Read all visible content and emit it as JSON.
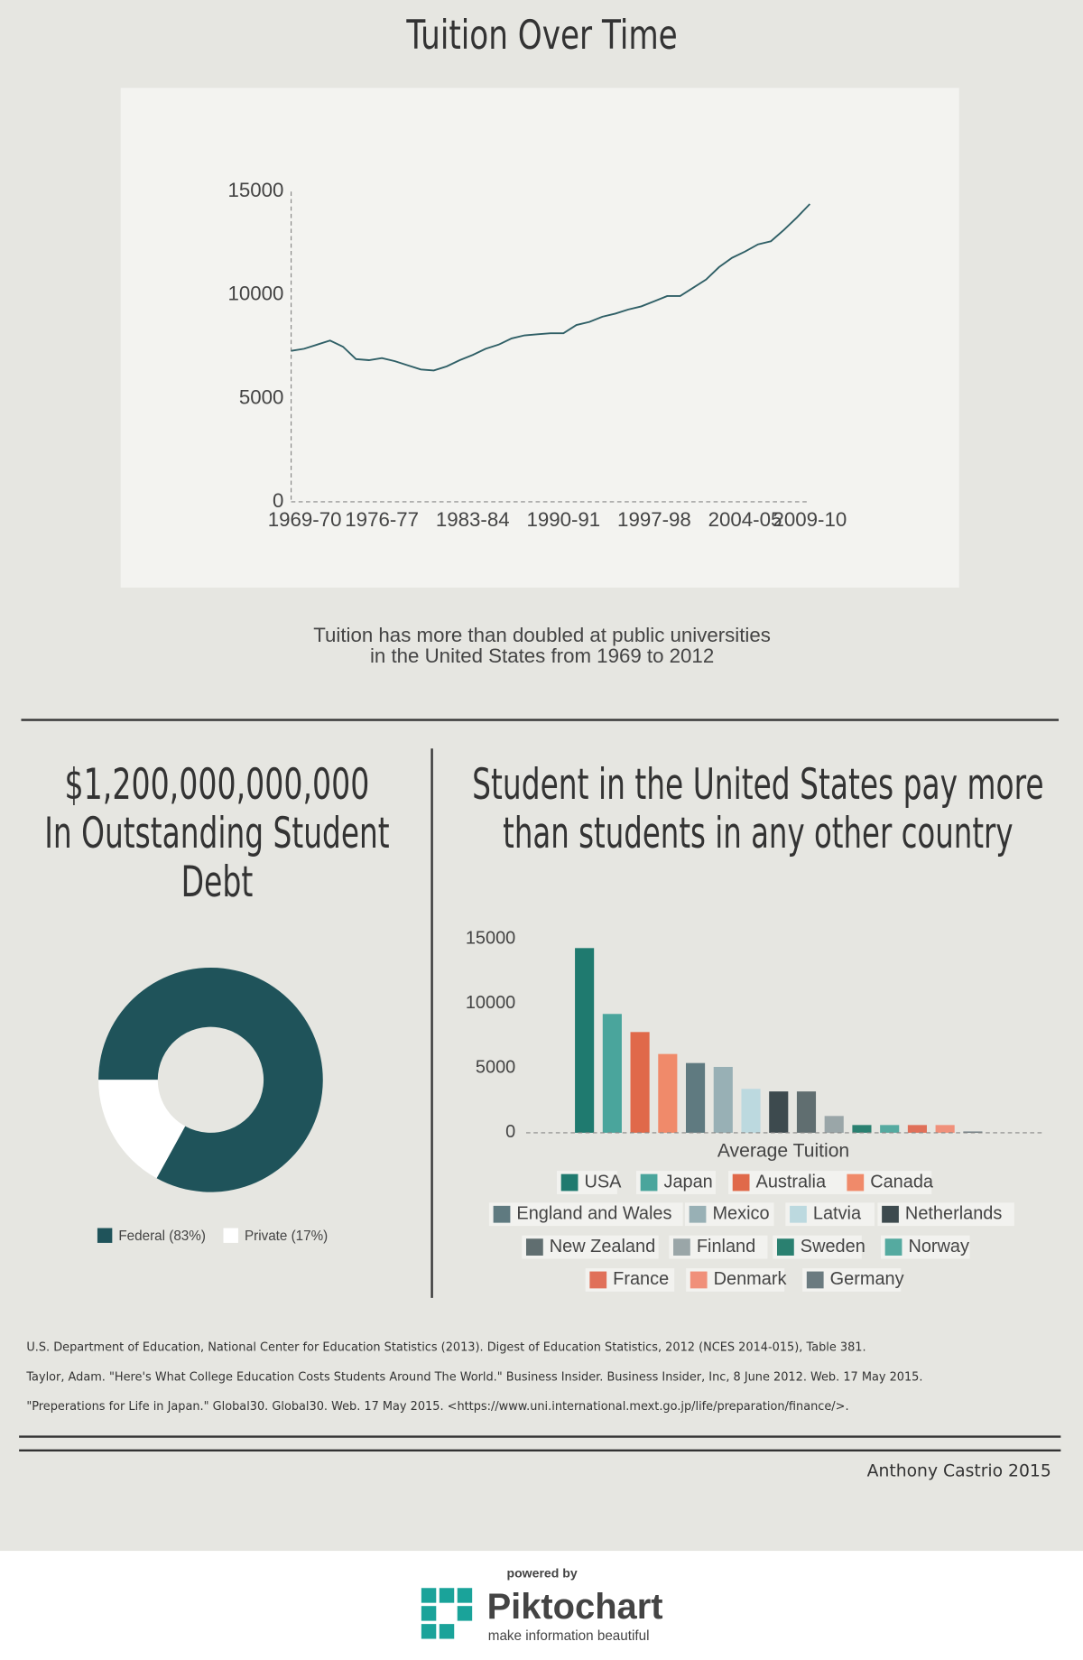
{
  "title": "Tuition Over Time",
  "caption": [
    "Tuition has more than doubled at public universities",
    "in the United States from 1969 to 2012"
  ],
  "debt_heading": [
    "$1,200,000,000,000",
    "In Outstanding Student",
    "Debt"
  ],
  "country_heading": [
    "Student in the United States pay more",
    "than students in any other country"
  ],
  "references": [
    "U.S. Department of Education, National Center for Education Statistics (2013). Digest of Education Statistics, 2012 (NCES 2014-015), Table 381.",
    "Taylor, Adam. \"Here's What College Education Costs Students Around The World.\" Business Insider. Business Insider, Inc, 8 June 2012. Web. 17 May 2015.",
    "\"Preperations for Life in Japan.\" Global30. Global30. Web. 17 May 2015. <https://www.uni.international.mext.go.jp/life/preparation/finance/>."
  ],
  "author": "Anthony Castrio 2015",
  "footer": {
    "powered_by": "powered by",
    "brand": "Piktochart",
    "tagline": "make information beautiful"
  },
  "chart_data": [
    {
      "type": "line",
      "color": "#2f5f66",
      "categories": [
        "1969-70",
        null,
        null,
        null,
        null,
        null,
        null,
        "1976-77",
        null,
        null,
        null,
        null,
        null,
        null,
        "1983-84",
        null,
        null,
        null,
        null,
        null,
        null,
        "1990-91",
        null,
        null,
        null,
        null,
        null,
        null,
        "1997-98",
        null,
        null,
        null,
        null,
        null,
        null,
        "2004-05",
        null,
        null,
        null,
        null,
        "2009-10"
      ],
      "values": [
        7300,
        7400,
        7600,
        7800,
        7500,
        6900,
        6850,
        6950,
        6800,
        6600,
        6400,
        6350,
        6550,
        6850,
        7100,
        7400,
        7600,
        7900,
        8050,
        8100,
        8150,
        8150,
        8550,
        8700,
        8950,
        9100,
        9300,
        9450,
        9700,
        9950,
        9950,
        10350,
        10750,
        11350,
        11800,
        12100,
        12450,
        12600,
        13150,
        13750,
        14400
      ],
      "ylim": [
        0,
        15000
      ],
      "yticks": [
        0,
        5000,
        10000,
        15000
      ]
    },
    {
      "type": "pie",
      "categories": [
        "Federal (83%)",
        "Private (17%)"
      ],
      "values": [
        83,
        17
      ],
      "colors": [
        "#1f535a",
        "#ffffff"
      ]
    },
    {
      "type": "bar",
      "xlabel": "Average Tuition",
      "categories": [
        "USA",
        "Japan",
        "Australia",
        "Canada",
        "England and Wales",
        "Mexico",
        "Latvia",
        "Netherlands",
        "New Zealand",
        "Finland",
        "Sweden",
        "Norway",
        "France",
        "Denmark",
        "Germany"
      ],
      "values": [
        14300,
        9200,
        7800,
        6100,
        5400,
        5100,
        3400,
        3200,
        3200,
        1300,
        600,
        600,
        600,
        600,
        100
      ],
      "colors": [
        "#1f7a6f",
        "#4aa59c",
        "#e0694a",
        "#f08a6a",
        "#5f7a80",
        "#98b0b5",
        "#bcd9df",
        "#3d4a4e",
        "#606e70",
        "#9aa6a8",
        "#2a8070",
        "#55aaa0",
        "#e07059",
        "#f0907a",
        "#6b7b80"
      ],
      "ylim": [
        0,
        15000
      ],
      "yticks": [
        0,
        5000,
        10000,
        15000
      ]
    }
  ]
}
